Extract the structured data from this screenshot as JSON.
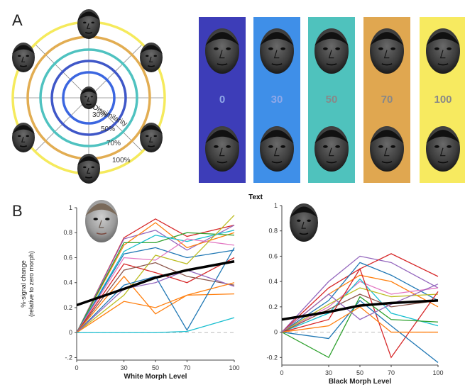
{
  "panel_a": {
    "letter": "A",
    "radial_diagram": {
      "axis_label": "Dissimilarity",
      "ring_labels": [
        "30%",
        "50%",
        "70%",
        "100%"
      ],
      "ring_colors": [
        "#3f57c8",
        "#4fc2c0",
        "#e2ad52",
        "#f5ea5c"
      ],
      "center_ring_color": "#3b66e0"
    },
    "morph_strip": {
      "levels": [
        "0",
        "30",
        "50",
        "70",
        "100"
      ],
      "colors": [
        "#3d3db8",
        "#3f8fe8",
        "#4fc2bd",
        "#e0a750",
        "#f7ea60"
      ]
    }
  },
  "panel_b": {
    "letter": "B",
    "header_text": "Text"
  },
  "chart_data": [
    {
      "type": "line",
      "xlabel": "White Morph Level",
      "ylabel": "%-signal change",
      "ylabel_sub": "(relative to zero morph)",
      "x": [
        0,
        30,
        50,
        70,
        100
      ],
      "xticks": [
        "0",
        "30",
        "50",
        "70",
        "100"
      ],
      "yticks": [
        "-.2",
        "0",
        "0.2",
        "0.4",
        "0.6",
        "0.8",
        "1"
      ],
      "ylim": [
        -0.22,
        1.0
      ],
      "series": [
        {
          "color": "#d62728",
          "values": [
            0,
            0.76,
            0.91,
            0.77,
            0.86
          ]
        },
        {
          "color": "#9467bd",
          "values": [
            0,
            0.75,
            0.82,
            0.66,
            0.86
          ]
        },
        {
          "color": "#ff7f0e",
          "values": [
            0,
            0.7,
            0.88,
            0.68,
            0.8
          ]
        },
        {
          "color": "#2ca02c",
          "values": [
            0,
            0.72,
            0.72,
            0.8,
            0.78
          ]
        },
        {
          "color": "#17becf",
          "values": [
            0,
            0.65,
            0.78,
            0.73,
            0.82
          ]
        },
        {
          "color": "#1f77b4",
          "values": [
            0,
            0.63,
            0.68,
            0.6,
            0.66
          ]
        },
        {
          "color": "#e377c2",
          "values": [
            0,
            0.6,
            0.58,
            0.75,
            0.7
          ]
        },
        {
          "color": "#bcbd22",
          "values": [
            0,
            0.3,
            0.62,
            0.55,
            0.94
          ]
        },
        {
          "color": "#d62728",
          "values": [
            0,
            0.55,
            0.48,
            0.4,
            0.6
          ]
        },
        {
          "color": "#8c564b",
          "values": [
            0,
            0.5,
            0.56,
            0.45,
            0.38
          ]
        },
        {
          "color": "#ff7f0e",
          "values": [
            0,
            0.45,
            0.15,
            0.3,
            0.31
          ]
        },
        {
          "color": "#1f77b4",
          "values": [
            0,
            0.38,
            0.45,
            0.02,
            0.68
          ]
        },
        {
          "color": "#9467bd",
          "values": [
            0,
            0.35,
            0.4,
            0.5,
            0.37
          ]
        },
        {
          "color": "#ff7f0e",
          "values": [
            0,
            0.25,
            0.2,
            0.3,
            0.4
          ]
        },
        {
          "color": "#17becf",
          "values": [
            0,
            0.0,
            0.0,
            0.01,
            0.12
          ]
        }
      ],
      "mean": {
        "color": "#000000",
        "values": [
          0.22,
          0.35,
          0.44,
          0.5,
          0.57
        ]
      },
      "zero_line": "dashed"
    },
    {
      "type": "line",
      "xlabel": "Black Morph Level",
      "ylabel": "",
      "x": [
        0,
        30,
        50,
        70,
        100
      ],
      "xticks": [
        "0",
        "30",
        "50",
        "70",
        "100"
      ],
      "yticks": [
        "-0.2",
        "0",
        "0.2",
        "0.4",
        "0.6",
        "0.8",
        "1"
      ],
      "ylim": [
        -0.26,
        1.0
      ],
      "series": [
        {
          "color": "#9467bd",
          "values": [
            0,
            0.4,
            0.6,
            0.55,
            0.35
          ]
        },
        {
          "color": "#d62728",
          "values": [
            0,
            0.35,
            0.5,
            0.62,
            0.44
          ]
        },
        {
          "color": "#1f77b4",
          "values": [
            0,
            0.25,
            0.55,
            0.45,
            0.25
          ]
        },
        {
          "color": "#ff7f0e",
          "values": [
            0,
            0.3,
            0.45,
            0.4,
            0.2
          ]
        },
        {
          "color": "#e377c2",
          "values": [
            0,
            0.2,
            0.4,
            0.3,
            0.35
          ]
        },
        {
          "color": "#17becf",
          "values": [
            0,
            0.15,
            0.42,
            0.15,
            0.05
          ]
        },
        {
          "color": "#bcbd22",
          "values": [
            0,
            0.22,
            0.35,
            0.28,
            0.3
          ]
        },
        {
          "color": "#d62728",
          "values": [
            0,
            0.1,
            0.5,
            -0.2,
            0.32
          ]
        },
        {
          "color": "#8c564b",
          "values": [
            0,
            0.18,
            0.3,
            0.2,
            0.25
          ]
        },
        {
          "color": "#1f77b4",
          "values": [
            0,
            -0.05,
            0.25,
            0.05,
            -0.24
          ]
        },
        {
          "color": "#2ca02c",
          "values": [
            0,
            -0.2,
            0.28,
            0.1,
            0.08
          ]
        },
        {
          "color": "#ff7f0e",
          "values": [
            0,
            0.05,
            0.2,
            0.0,
            0.0
          ]
        },
        {
          "color": "#9467bd",
          "values": [
            0,
            0.3,
            0.1,
            0.22,
            0.38
          ]
        }
      ],
      "mean": {
        "color": "#000000",
        "values": [
          0.1,
          0.16,
          0.21,
          0.23,
          0.25
        ]
      },
      "zero_line": "dashed"
    }
  ]
}
